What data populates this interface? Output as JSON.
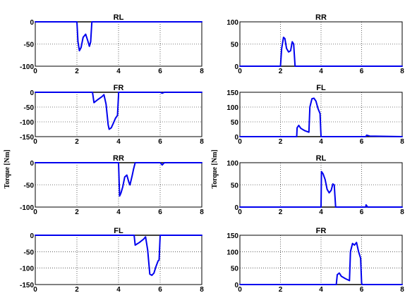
{
  "ylabel": "Torque [Nm]",
  "chart_data": [
    {
      "type": "line",
      "title": "RL",
      "xlim": [
        0,
        8
      ],
      "ylim": [
        -100,
        0
      ],
      "xticks": [
        "0",
        "2",
        "4",
        "6",
        "8"
      ],
      "yticks": [
        "-100",
        "-50",
        "0"
      ],
      "grid": true,
      "x": [
        0,
        2.0,
        2.05,
        2.12,
        2.2,
        2.3,
        2.42,
        2.52,
        2.6,
        2.66,
        2.72,
        2.78,
        8
      ],
      "y": [
        0,
        0,
        -45,
        -65,
        -58,
        -35,
        -28,
        -42,
        -55,
        -45,
        0,
        0,
        0
      ]
    },
    {
      "type": "line",
      "title": "RR",
      "xlim": [
        0,
        8
      ],
      "ylim": [
        0,
        100
      ],
      "xticks": [
        "0",
        "2",
        "4",
        "6",
        "8"
      ],
      "yticks": [
        "0",
        "50",
        "100"
      ],
      "grid": true,
      "x": [
        0,
        2.0,
        2.06,
        2.15,
        2.22,
        2.3,
        2.4,
        2.5,
        2.58,
        2.65,
        2.72,
        2.78,
        8
      ],
      "y": [
        0,
        0,
        40,
        65,
        62,
        40,
        32,
        35,
        55,
        50,
        0,
        0,
        0
      ]
    },
    {
      "type": "line",
      "title": "FR",
      "xlim": [
        0,
        8
      ],
      "ylim": [
        -150,
        0
      ],
      "xticks": [
        "0",
        "2",
        "4",
        "6",
        "8"
      ],
      "yticks": [
        "-150",
        "-100",
        "-50",
        "0"
      ],
      "grid": true,
      "x": [
        0,
        2.75,
        2.82,
        3.0,
        3.2,
        3.3,
        3.4,
        3.5,
        3.55,
        3.65,
        3.75,
        3.85,
        3.95,
        4.0,
        4.0,
        6.0,
        6.1,
        6.2,
        8
      ],
      "y": [
        0,
        0,
        -35,
        -25,
        -15,
        -8,
        -40,
        -110,
        -125,
        -120,
        -105,
        -88,
        -78,
        -10,
        0,
        0,
        -3,
        0,
        0
      ]
    },
    {
      "type": "line",
      "title": "FL",
      "xlim": [
        0,
        8
      ],
      "ylim": [
        0,
        150
      ],
      "xticks": [
        "0",
        "2",
        "4",
        "6",
        "8"
      ],
      "yticks": [
        "0",
        "50",
        "100",
        "150"
      ],
      "grid": true,
      "x": [
        0,
        2.8,
        2.82,
        2.9,
        3.0,
        3.2,
        3.4,
        3.45,
        3.55,
        3.65,
        3.75,
        3.85,
        3.95,
        4.0,
        4.0,
        6.2,
        6.25,
        6.4,
        8
      ],
      "y": [
        0,
        0,
        30,
        38,
        28,
        20,
        15,
        100,
        128,
        130,
        120,
        95,
        78,
        0,
        0,
        0,
        5,
        2,
        0
      ]
    },
    {
      "type": "line",
      "title": "RR",
      "xlim": [
        0,
        8
      ],
      "ylim": [
        -100,
        0
      ],
      "xticks": [
        "0",
        "2",
        "4",
        "6",
        "8"
      ],
      "yticks": [
        "-100",
        "-50",
        "0"
      ],
      "grid": true,
      "x": [
        0,
        4.0,
        4.05,
        4.12,
        4.2,
        4.3,
        4.4,
        4.5,
        4.55,
        4.65,
        4.72,
        4.8,
        6.0,
        6.1,
        6.2,
        8
      ],
      "y": [
        0,
        0,
        -75,
        -68,
        -55,
        -32,
        -28,
        -45,
        -50,
        -30,
        -15,
        0,
        0,
        -5,
        0,
        0
      ]
    },
    {
      "type": "line",
      "title": "RL",
      "xlim": [
        0,
        8
      ],
      "ylim": [
        0,
        100
      ],
      "xticks": [
        "0",
        "2",
        "4",
        "6",
        "8"
      ],
      "yticks": [
        "0",
        "50",
        "100"
      ],
      "grid": true,
      "x": [
        0,
        4.0,
        4.02,
        4.1,
        4.2,
        4.3,
        4.4,
        4.5,
        4.58,
        4.65,
        4.72,
        4.8,
        6.2,
        6.22,
        6.3,
        8
      ],
      "y": [
        0,
        0,
        80,
        75,
        62,
        40,
        32,
        38,
        52,
        50,
        0,
        0,
        0,
        5,
        0,
        0
      ]
    },
    {
      "type": "line",
      "title": "FL",
      "xlim": [
        0,
        8
      ],
      "ylim": [
        -150,
        0
      ],
      "xticks": [
        "0",
        "2",
        "4",
        "6",
        "8"
      ],
      "yticks": [
        "-150",
        "-100",
        "-50",
        "0"
      ],
      "grid": true,
      "x": [
        0,
        4.75,
        4.8,
        5.0,
        5.2,
        5.3,
        5.4,
        5.5,
        5.6,
        5.7,
        5.8,
        5.9,
        5.95,
        6.0,
        6.05,
        8
      ],
      "y": [
        0,
        0,
        -30,
        -22,
        -12,
        -5,
        -45,
        -118,
        -122,
        -115,
        -95,
        -78,
        -75,
        0,
        0,
        0
      ]
    },
    {
      "type": "line",
      "title": "FR",
      "xlim": [
        0,
        8
      ],
      "ylim": [
        0,
        150
      ],
      "xticks": [
        "0",
        "2",
        "4",
        "6",
        "8"
      ],
      "yticks": [
        "0",
        "50",
        "100",
        "150"
      ],
      "grid": true,
      "x": [
        0,
        4.75,
        4.8,
        4.9,
        5.0,
        5.2,
        5.4,
        5.45,
        5.55,
        5.65,
        5.75,
        5.85,
        5.95,
        6.0,
        6.02,
        8
      ],
      "y": [
        0,
        0,
        30,
        35,
        25,
        18,
        12,
        100,
        125,
        120,
        128,
        100,
        80,
        5,
        0,
        0
      ]
    }
  ]
}
